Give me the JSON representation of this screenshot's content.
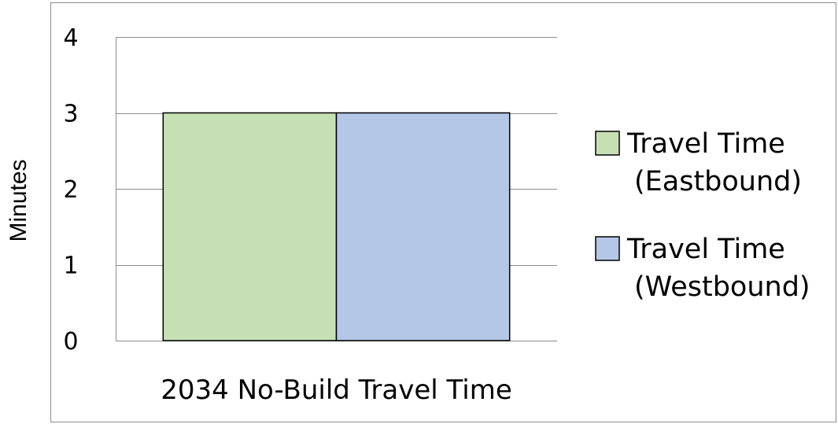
{
  "chart_data": {
    "type": "bar",
    "title": "",
    "xlabel": "",
    "ylabel": "Minutes",
    "categories": [
      "2034 No-Build Travel Time"
    ],
    "series": [
      {
        "name": "Travel Time (Eastbound)",
        "name_lines": [
          "Travel Time",
          "(Eastbound)"
        ],
        "values": [
          3
        ],
        "color": "#c6e0b4"
      },
      {
        "name": "Travel Time (Westbound)",
        "name_lines": [
          "Travel Time",
          "(Westbound)"
        ],
        "values": [
          3
        ],
        "color": "#b4c7e7"
      }
    ],
    "ylim": [
      0,
      4
    ],
    "yticks": [
      0,
      1,
      2,
      3,
      4
    ],
    "grid": true,
    "legend_position": "right"
  }
}
